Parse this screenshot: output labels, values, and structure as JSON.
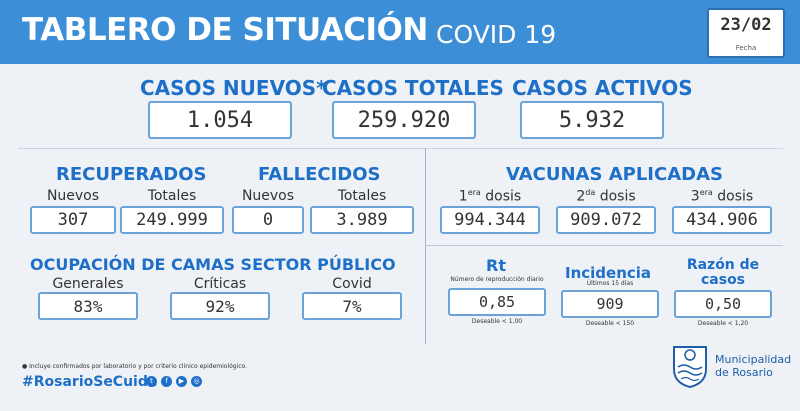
{
  "header": {
    "title": "TABLERO DE SITUACIÓN",
    "subtitle": "COVID 19",
    "date": "23/02",
    "date_label": "Fecha",
    "bg_color": "#3c8fd6"
  },
  "casos": {
    "nuevos_label": "CASOS NUEVOS*",
    "nuevos_value": "1.054",
    "totales_label": "CASOS TOTALES",
    "totales_value": "259.920",
    "activos_label": "CASOS ACTIVOS",
    "activos_value": "5.932"
  },
  "recuperados": {
    "label": "RECUPERADOS",
    "nuevos_label": "Nuevos",
    "nuevos_value": "307",
    "totales_label": "Totales",
    "totales_value": "249.999"
  },
  "fallecidos": {
    "label": "FALLECIDOS",
    "nuevos_label": "Nuevos",
    "nuevos_value": "0",
    "totales_label": "Totales",
    "totales_value": "3.989"
  },
  "vacunas": {
    "label": "VACUNAS APLICADAS",
    "dosis": [
      {
        "num": "1",
        "sup": "era",
        "word": "dosis",
        "value": "994.344"
      },
      {
        "num": "2",
        "sup": "da",
        "word": "dosis",
        "value": "909.072"
      },
      {
        "num": "3",
        "sup": "era",
        "word": "dosis",
        "value": "434.906"
      }
    ]
  },
  "ocupacion": {
    "label": "OCUPACIÓN DE CAMAS SECTOR PÚBLICO",
    "generales_label": "Generales",
    "generales_value": "83%",
    "criticas_label": "Críticas",
    "criticas_value": "92%",
    "covid_label": "Covid",
    "covid_value": "7%"
  },
  "indicadores": {
    "rt_label": "Rt",
    "rt_sub": "Número de reproducción diario",
    "rt_value": "0,85",
    "rt_note": "Deseable < 1,00",
    "incidencia_label": "Incidencia",
    "incidencia_sub": "Últimos 15 días",
    "incidencia_value": "909",
    "incidencia_note": "Deseable < 150",
    "razon_label_1": "Razón de",
    "razon_label_2": "casos",
    "razon_value": "0,50",
    "razon_note": "Deseable < 1,20"
  },
  "footer": {
    "footnote": "● Incluye confirmados por laboratorio y por criterio clínico epidemiológico.",
    "hashtag": "#RosarioSeCuida",
    "social_icons": [
      "twitter-icon",
      "facebook-icon",
      "youtube-icon",
      "instagram-icon"
    ],
    "muni_line1": "Municipalidad",
    "muni_line2": "de Rosario"
  },
  "colors": {
    "accent": "#1e6fc8",
    "box_border": "#6aa3d8",
    "background": "#eef1f5"
  }
}
